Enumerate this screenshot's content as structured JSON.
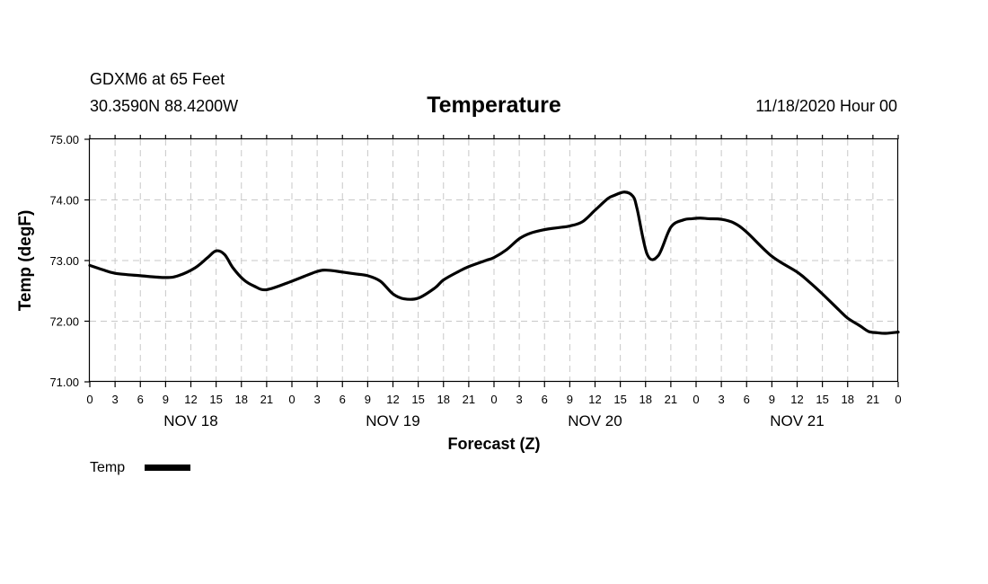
{
  "header": {
    "station": "GDXM6 at 65 Feet",
    "coords": "30.3590N 88.4200W",
    "datetime": "11/18/2020 Hour 00"
  },
  "chart_data": {
    "type": "line",
    "title": "Temperature",
    "xlabel": "Forecast (Z)",
    "ylabel": "Temp (degF)",
    "ylim": [
      71,
      75
    ],
    "yticks": [
      "71.00",
      "72.00",
      "73.00",
      "74.00",
      "75.00"
    ],
    "xlim": [
      0,
      96
    ],
    "xtick_hours": [
      0,
      3,
      6,
      9,
      12,
      15,
      18,
      21,
      24,
      27,
      30,
      33,
      36,
      39,
      42,
      45,
      48,
      51,
      54,
      57,
      60,
      63,
      66,
      69,
      72,
      75,
      78,
      81,
      84,
      87,
      90,
      93,
      96
    ],
    "xtick_labels": [
      "0",
      "3",
      "6",
      "9",
      "12",
      "15",
      "18",
      "21",
      "0",
      "3",
      "6",
      "9",
      "12",
      "15",
      "18",
      "21",
      "0",
      "3",
      "6",
      "9",
      "12",
      "15",
      "18",
      "21",
      "0",
      "3",
      "6",
      "9",
      "12",
      "15",
      "18",
      "21",
      "0"
    ],
    "day_labels": [
      {
        "label": "NOV 18",
        "hour": 12
      },
      {
        "label": "NOV 19",
        "hour": 36
      },
      {
        "label": "NOV 20",
        "hour": 60
      },
      {
        "label": "NOV 21",
        "hour": 84
      }
    ],
    "grid": true,
    "legend": {
      "position": "bottom-left",
      "entries": [
        "Temp"
      ]
    },
    "series": [
      {
        "name": "Temp",
        "color": "#000000",
        "x": [
          0,
          1.5,
          3,
          6,
          9,
          10.5,
          12.5,
          14,
          15,
          16,
          17,
          18.3,
          19.5,
          21,
          24,
          27,
          28.3,
          30,
          31.5,
          33,
          34.5,
          36,
          37.3,
          39,
          41,
          42,
          43.8,
          45,
          47,
          48,
          49.5,
          51,
          52.3,
          54,
          55.5,
          57,
          58.5,
          60,
          61.5,
          62.2,
          63.5,
          64.5,
          65,
          66.2,
          67.5,
          69,
          70.5,
          71.5,
          72.5,
          73.5,
          75,
          76.5,
          78,
          81,
          84,
          85.5,
          87,
          89,
          90,
          91.5,
          92.5,
          93.5,
          94.5,
          96
        ],
        "values": [
          72.92,
          72.85,
          72.79,
          72.75,
          72.72,
          72.75,
          72.88,
          73.05,
          73.16,
          73.1,
          72.88,
          72.68,
          72.58,
          72.52,
          72.66,
          72.82,
          72.84,
          72.81,
          72.78,
          72.75,
          72.66,
          72.45,
          72.37,
          72.38,
          72.55,
          72.68,
          72.82,
          72.9,
          73.0,
          73.05,
          73.18,
          73.36,
          73.45,
          73.51,
          73.54,
          73.57,
          73.64,
          73.83,
          74.02,
          74.07,
          74.13,
          74.06,
          73.85,
          73.1,
          73.08,
          73.55,
          73.67,
          73.69,
          73.7,
          73.69,
          73.68,
          73.62,
          73.47,
          73.07,
          72.81,
          72.64,
          72.45,
          72.18,
          72.05,
          71.92,
          71.83,
          71.81,
          71.8,
          71.82
        ]
      }
    ]
  }
}
